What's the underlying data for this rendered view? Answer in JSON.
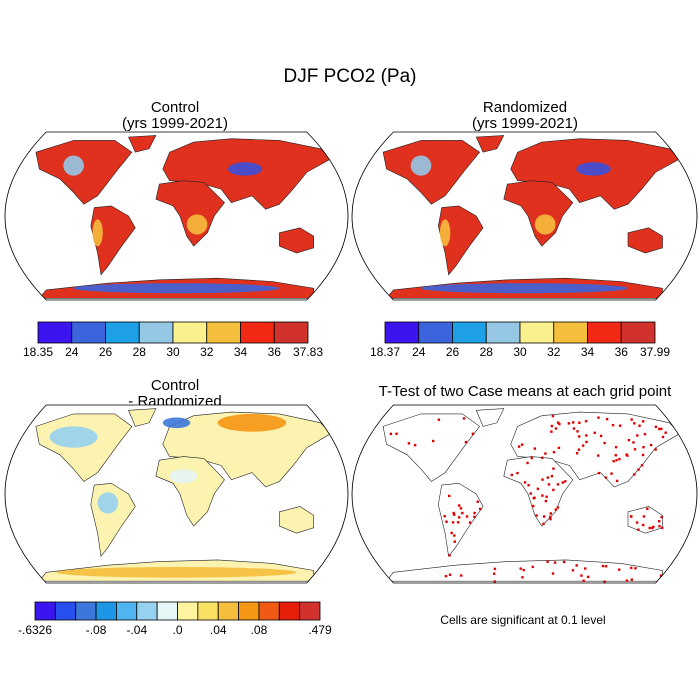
{
  "title": "DJF PCO2 (Pa)",
  "panels": [
    {
      "title": "Control",
      "subtitle": "(yrs 1999-2021)",
      "colorbar": {
        "colors": [
          "#3c14f0",
          "#3c64dc",
          "#1ea0e6",
          "#96c8e6",
          "#faf08c",
          "#f5be3c",
          "#f02814",
          "#d2322d"
        ],
        "labels": [
          "18.35",
          "24",
          "26",
          "28",
          "30",
          "32",
          "34",
          "36",
          "37.83"
        ]
      }
    },
    {
      "title": "Randomized",
      "subtitle": "(yrs 1999-2021)",
      "colorbar": {
        "colors": [
          "#3c14f0",
          "#3c64dc",
          "#1ea0e6",
          "#96c8e6",
          "#faf08c",
          "#f5be3c",
          "#f02814",
          "#d2322d"
        ],
        "labels": [
          "18.37",
          "24",
          "26",
          "28",
          "30",
          "32",
          "34",
          "36",
          "37.99"
        ]
      }
    },
    {
      "title": "Control",
      "subtitle": "- Randomized",
      "colorbar": {
        "colors": [
          "#3c14f0",
          "#2850f0",
          "#3c78dc",
          "#1e96e6",
          "#50b4f0",
          "#96d2f0",
          "#e6f5f5",
          "#fff5a0",
          "#fae164",
          "#f5be3c",
          "#f59614",
          "#f05a14",
          "#e61e0a",
          "#d2322d"
        ],
        "labels": [
          "-.6326",
          null,
          null,
          "-.08",
          null,
          "-.04",
          null,
          ".0",
          null,
          ".04",
          null,
          ".08",
          null,
          null,
          ".479"
        ]
      }
    },
    {
      "title": "T-Test of two Case means at each grid point"
    }
  ],
  "note": "Cells are significant at 0.1 level"
}
